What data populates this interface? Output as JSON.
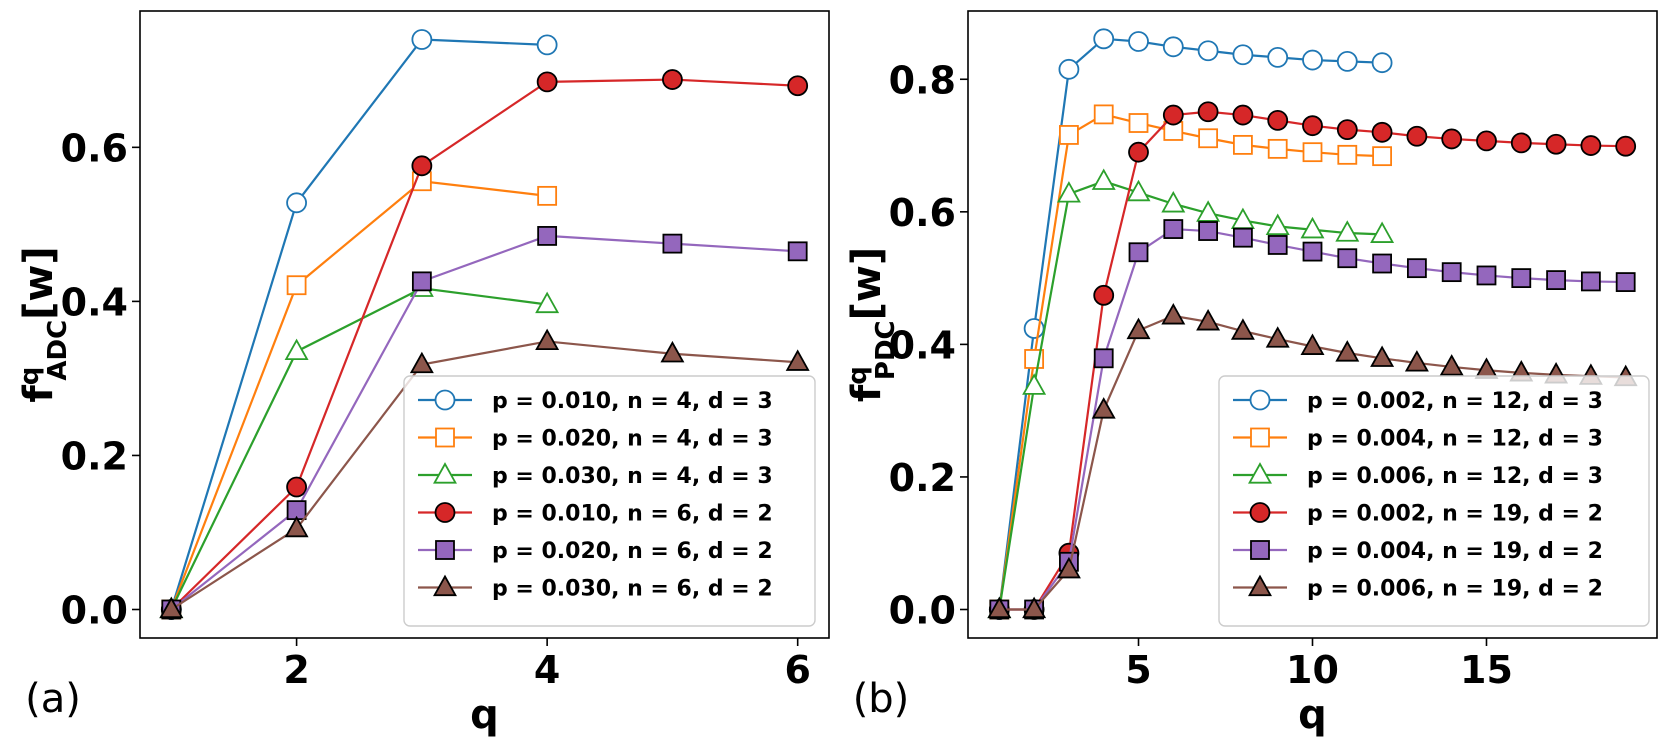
{
  "chart_data": [
    {
      "type": "line",
      "panel_label": "(a)",
      "xlabel": "q",
      "ylabel": {
        "base": "f",
        "sup": "q",
        "sub": "ADC",
        "suffix": "[w]"
      },
      "xlim": [
        0.75,
        6.25
      ],
      "ylim": [
        -0.037,
        0.777
      ],
      "xticks": [
        2,
        4,
        6
      ],
      "yticks": [
        0.0,
        0.2,
        0.4,
        0.6
      ],
      "ytick_labels": [
        "0.0",
        "0.2",
        "0.4",
        "0.6"
      ],
      "legend_position": "lower-right",
      "series": [
        {
          "name": "p = 0.010, n = 4, d = 3",
          "color": "#1f77b4",
          "marker": "circle",
          "filled": false,
          "x": [
            1,
            2,
            3,
            4
          ],
          "y": [
            0.0,
            0.528,
            0.74,
            0.733
          ]
        },
        {
          "name": "p = 0.020, n = 4, d = 3",
          "color": "#ff7f0e",
          "marker": "square",
          "filled": false,
          "x": [
            1,
            2,
            3,
            4
          ],
          "y": [
            0.0,
            0.421,
            0.556,
            0.537
          ]
        },
        {
          "name": "p = 0.030, n = 4, d = 3",
          "color": "#2ca02c",
          "marker": "triangle",
          "filled": false,
          "x": [
            1,
            2,
            3,
            4
          ],
          "y": [
            0.0,
            0.335,
            0.417,
            0.396
          ]
        },
        {
          "name": "p = 0.010, n = 6, d = 2",
          "color": "#d62728",
          "marker": "circle",
          "filled": true,
          "x": [
            1,
            2,
            3,
            4,
            5,
            6
          ],
          "y": [
            0.0,
            0.159,
            0.576,
            0.685,
            0.688,
            0.68
          ]
        },
        {
          "name": "p = 0.020, n = 6, d = 2",
          "color": "#9467bd",
          "marker": "square",
          "filled": true,
          "x": [
            1,
            2,
            3,
            4,
            5,
            6
          ],
          "y": [
            0.0,
            0.129,
            0.426,
            0.485,
            0.475,
            0.465
          ]
        },
        {
          "name": "p = 0.030, n = 6, d = 2",
          "color": "#8c564b",
          "marker": "triangle",
          "filled": true,
          "x": [
            1,
            2,
            3,
            4,
            5,
            6
          ],
          "y": [
            0.0,
            0.105,
            0.318,
            0.348,
            0.332,
            0.321
          ]
        }
      ]
    },
    {
      "type": "line",
      "panel_label": "(b)",
      "xlabel": "q",
      "ylabel": {
        "base": "f",
        "sup": "q",
        "sub": "PDC",
        "suffix": "[w]"
      },
      "xlim": [
        0.1,
        19.9
      ],
      "ylim": [
        -0.043,
        0.903
      ],
      "xticks": [
        5,
        10,
        15
      ],
      "yticks": [
        0.0,
        0.2,
        0.4,
        0.6,
        0.8
      ],
      "ytick_labels": [
        "0.0",
        "0.2",
        "0.4",
        "0.6",
        "0.8"
      ],
      "legend_position": "lower-right",
      "series": [
        {
          "name": "p = 0.002, n = 12, d = 3",
          "color": "#1f77b4",
          "marker": "circle",
          "filled": false,
          "x": [
            1,
            2,
            3,
            4,
            5,
            6,
            7,
            8,
            9,
            10,
            11,
            12
          ],
          "y": [
            0.0,
            0.424,
            0.815,
            0.861,
            0.857,
            0.849,
            0.843,
            0.837,
            0.833,
            0.829,
            0.827,
            0.825
          ]
        },
        {
          "name": "p = 0.004, n = 12, d = 3",
          "color": "#ff7f0e",
          "marker": "square",
          "filled": false,
          "x": [
            1,
            2,
            3,
            4,
            5,
            6,
            7,
            8,
            9,
            10,
            11,
            12
          ],
          "y": [
            0.0,
            0.378,
            0.716,
            0.747,
            0.734,
            0.722,
            0.711,
            0.701,
            0.695,
            0.69,
            0.686,
            0.684
          ]
        },
        {
          "name": "p = 0.006, n = 12, d = 3",
          "color": "#2ca02c",
          "marker": "triangle",
          "filled": false,
          "x": [
            1,
            2,
            3,
            4,
            5,
            6,
            7,
            8,
            9,
            10,
            11,
            12
          ],
          "y": [
            0.0,
            0.337,
            0.627,
            0.646,
            0.629,
            0.612,
            0.598,
            0.587,
            0.578,
            0.573,
            0.568,
            0.566
          ]
        },
        {
          "name": "p = 0.002, n = 19, d = 2",
          "color": "#d62728",
          "marker": "circle",
          "filled": true,
          "x": [
            1,
            2,
            3,
            4,
            5,
            6,
            7,
            8,
            9,
            10,
            11,
            12,
            13,
            14,
            15,
            16,
            17,
            18,
            19
          ],
          "y": [
            0.0,
            0.0,
            0.085,
            0.474,
            0.69,
            0.746,
            0.751,
            0.746,
            0.738,
            0.73,
            0.724,
            0.72,
            0.714,
            0.71,
            0.707,
            0.704,
            0.702,
            0.7,
            0.699
          ]
        },
        {
          "name": "p = 0.004, n = 19, d = 2",
          "color": "#9467bd",
          "marker": "square",
          "filled": true,
          "x": [
            1,
            2,
            3,
            4,
            5,
            6,
            7,
            8,
            9,
            10,
            11,
            12,
            13,
            14,
            15,
            16,
            17,
            18,
            19
          ],
          "y": [
            0.0,
            0.0,
            0.072,
            0.379,
            0.539,
            0.574,
            0.571,
            0.561,
            0.55,
            0.54,
            0.53,
            0.522,
            0.515,
            0.509,
            0.504,
            0.5,
            0.497,
            0.495,
            0.494
          ]
        },
        {
          "name": "p = 0.006, n = 19, d = 2",
          "color": "#8c564b",
          "marker": "triangle",
          "filled": true,
          "x": [
            1,
            2,
            3,
            4,
            5,
            6,
            7,
            8,
            9,
            10,
            11,
            12,
            13,
            14,
            15,
            16,
            17,
            18,
            19
          ],
          "y": [
            0.0,
            0.0,
            0.06,
            0.301,
            0.421,
            0.443,
            0.434,
            0.42,
            0.408,
            0.397,
            0.387,
            0.379,
            0.372,
            0.366,
            0.361,
            0.357,
            0.354,
            0.352,
            0.35
          ]
        }
      ]
    }
  ]
}
